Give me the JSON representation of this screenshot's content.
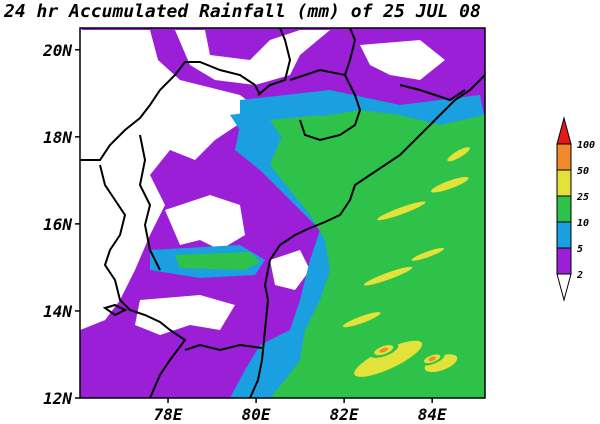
{
  "title": "24 hr Accumulated Rainfall (mm) of 25 JUL 08",
  "chart_data": {
    "type": "heatmap",
    "title": "24 hr Accumulated Rainfall (mm) of 25 JUL 08",
    "xlabel": "",
    "ylabel": "",
    "xlim": [
      76,
      85.2
    ],
    "ylim": [
      12,
      20.5
    ],
    "x_ticks": [
      {
        "value": 78,
        "label": "78E"
      },
      {
        "value": 80,
        "label": "80E"
      },
      {
        "value": 82,
        "label": "82E"
      },
      {
        "value": 84,
        "label": "84E"
      }
    ],
    "y_ticks": [
      {
        "value": 12,
        "label": "12N"
      },
      {
        "value": 14,
        "label": "14N"
      },
      {
        "value": 16,
        "label": "16N"
      },
      {
        "value": 18,
        "label": "18N"
      },
      {
        "value": 20,
        "label": "20N"
      }
    ],
    "colorbar": {
      "labels": [
        "2",
        "5",
        "10",
        "25",
        "50",
        "100"
      ],
      "colors": [
        "#9a1fd6",
        "#1aa0e0",
        "#2fc24a",
        "#e2e23a",
        "#f08a2a",
        "#e41818"
      ],
      "units": "mm"
    },
    "rain_cells": [
      {
        "lon": 83.0,
        "lat": 12.9,
        "rx": 1.3,
        "ry": 0.35,
        "rot": -25,
        "level": 4
      },
      {
        "lon": 84.2,
        "lat": 12.8,
        "rx": 0.6,
        "ry": 0.25,
        "rot": -20,
        "level": 4
      },
      {
        "lon": 82.9,
        "lat": 13.1,
        "rx": 0.35,
        "ry": 0.14,
        "rot": -20,
        "level": 5
      },
      {
        "lon": 84.0,
        "lat": 12.9,
        "rx": 0.3,
        "ry": 0.12,
        "rot": -20,
        "level": 5
      },
      {
        "lon": 83.3,
        "lat": 16.3,
        "rx": 0.9,
        "ry": 0.12,
        "rot": -20,
        "level": 4
      },
      {
        "lon": 84.4,
        "lat": 16.9,
        "rx": 0.7,
        "ry": 0.14,
        "rot": -20,
        "level": 4
      },
      {
        "lon": 84.6,
        "lat": 17.6,
        "rx": 0.45,
        "ry": 0.12,
        "rot": -30,
        "level": 4
      },
      {
        "lon": 83.0,
        "lat": 14.8,
        "rx": 0.9,
        "ry": 0.12,
        "rot": -20,
        "level": 4
      },
      {
        "lon": 83.9,
        "lat": 15.3,
        "rx": 0.6,
        "ry": 0.1,
        "rot": -20,
        "level": 4
      },
      {
        "lon": 82.4,
        "lat": 13.8,
        "rx": 0.7,
        "ry": 0.12,
        "rot": -20,
        "level": 4
      }
    ]
  }
}
